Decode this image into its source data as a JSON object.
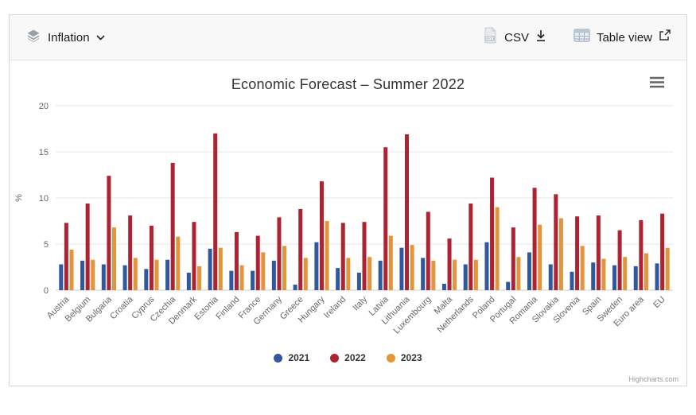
{
  "toolbar": {
    "dataset_label": "Inflation",
    "csv_label": "CSV",
    "table_view_label": "Table view"
  },
  "icons": {
    "left": "layers-icon",
    "dropdown": "chevron-down-icon",
    "csv": "csv-file-icon",
    "download": "download-icon",
    "table": "table-icon",
    "external": "external-link-icon",
    "menu": "hamburger-menu-icon"
  },
  "credits": "Highcharts.com",
  "chart_data": {
    "type": "bar",
    "title": "Economic Forecast – Summer 2022",
    "xlabel": "",
    "ylabel": "%",
    "ylim": [
      0,
      20
    ],
    "yticks": [
      0,
      5,
      10,
      15,
      20
    ],
    "grid": true,
    "legend_position": "bottom",
    "categories": [
      "Austria",
      "Belgium",
      "Bulgaria",
      "Croatia",
      "Cyprus",
      "Czechia",
      "Denmark",
      "Estonia",
      "Finland",
      "France",
      "Germany",
      "Greece",
      "Hungary",
      "Ireland",
      "Italy",
      "Latvia",
      "Lithuania",
      "Luxembourg",
      "Malta",
      "Netherlands",
      "Poland",
      "Portugal",
      "Romania",
      "Slovakia",
      "Slovenia",
      "Spain",
      "Sweden",
      "Euro area",
      "EU"
    ],
    "series": [
      {
        "name": "2021",
        "color": "#30589f",
        "values": [
          2.8,
          3.2,
          2.8,
          2.7,
          2.3,
          3.3,
          1.9,
          4.5,
          2.1,
          2.1,
          3.2,
          0.6,
          5.2,
          2.4,
          1.9,
          3.2,
          4.6,
          3.5,
          0.7,
          2.8,
          5.2,
          0.9,
          4.1,
          2.8,
          2.0,
          3.0,
          2.7,
          2.6,
          2.9
        ]
      },
      {
        "name": "2022",
        "color": "#ad2331",
        "values": [
          7.3,
          9.4,
          12.4,
          8.1,
          7.0,
          13.8,
          7.4,
          17.0,
          6.3,
          5.9,
          7.9,
          8.8,
          11.8,
          7.3,
          7.4,
          15.5,
          16.9,
          8.5,
          5.6,
          9.4,
          12.2,
          6.8,
          11.1,
          10.4,
          8.0,
          8.1,
          6.5,
          7.6,
          8.3
        ]
      },
      {
        "name": "2023",
        "color": "#e3953c",
        "values": [
          4.4,
          3.3,
          6.8,
          3.5,
          3.3,
          5.8,
          2.6,
          4.6,
          2.7,
          4.1,
          4.8,
          3.5,
          7.5,
          3.5,
          3.6,
          5.9,
          4.9,
          3.2,
          3.3,
          3.3,
          9.0,
          3.6,
          7.1,
          7.8,
          4.8,
          3.4,
          3.6,
          4.0,
          4.6
        ]
      }
    ]
  }
}
